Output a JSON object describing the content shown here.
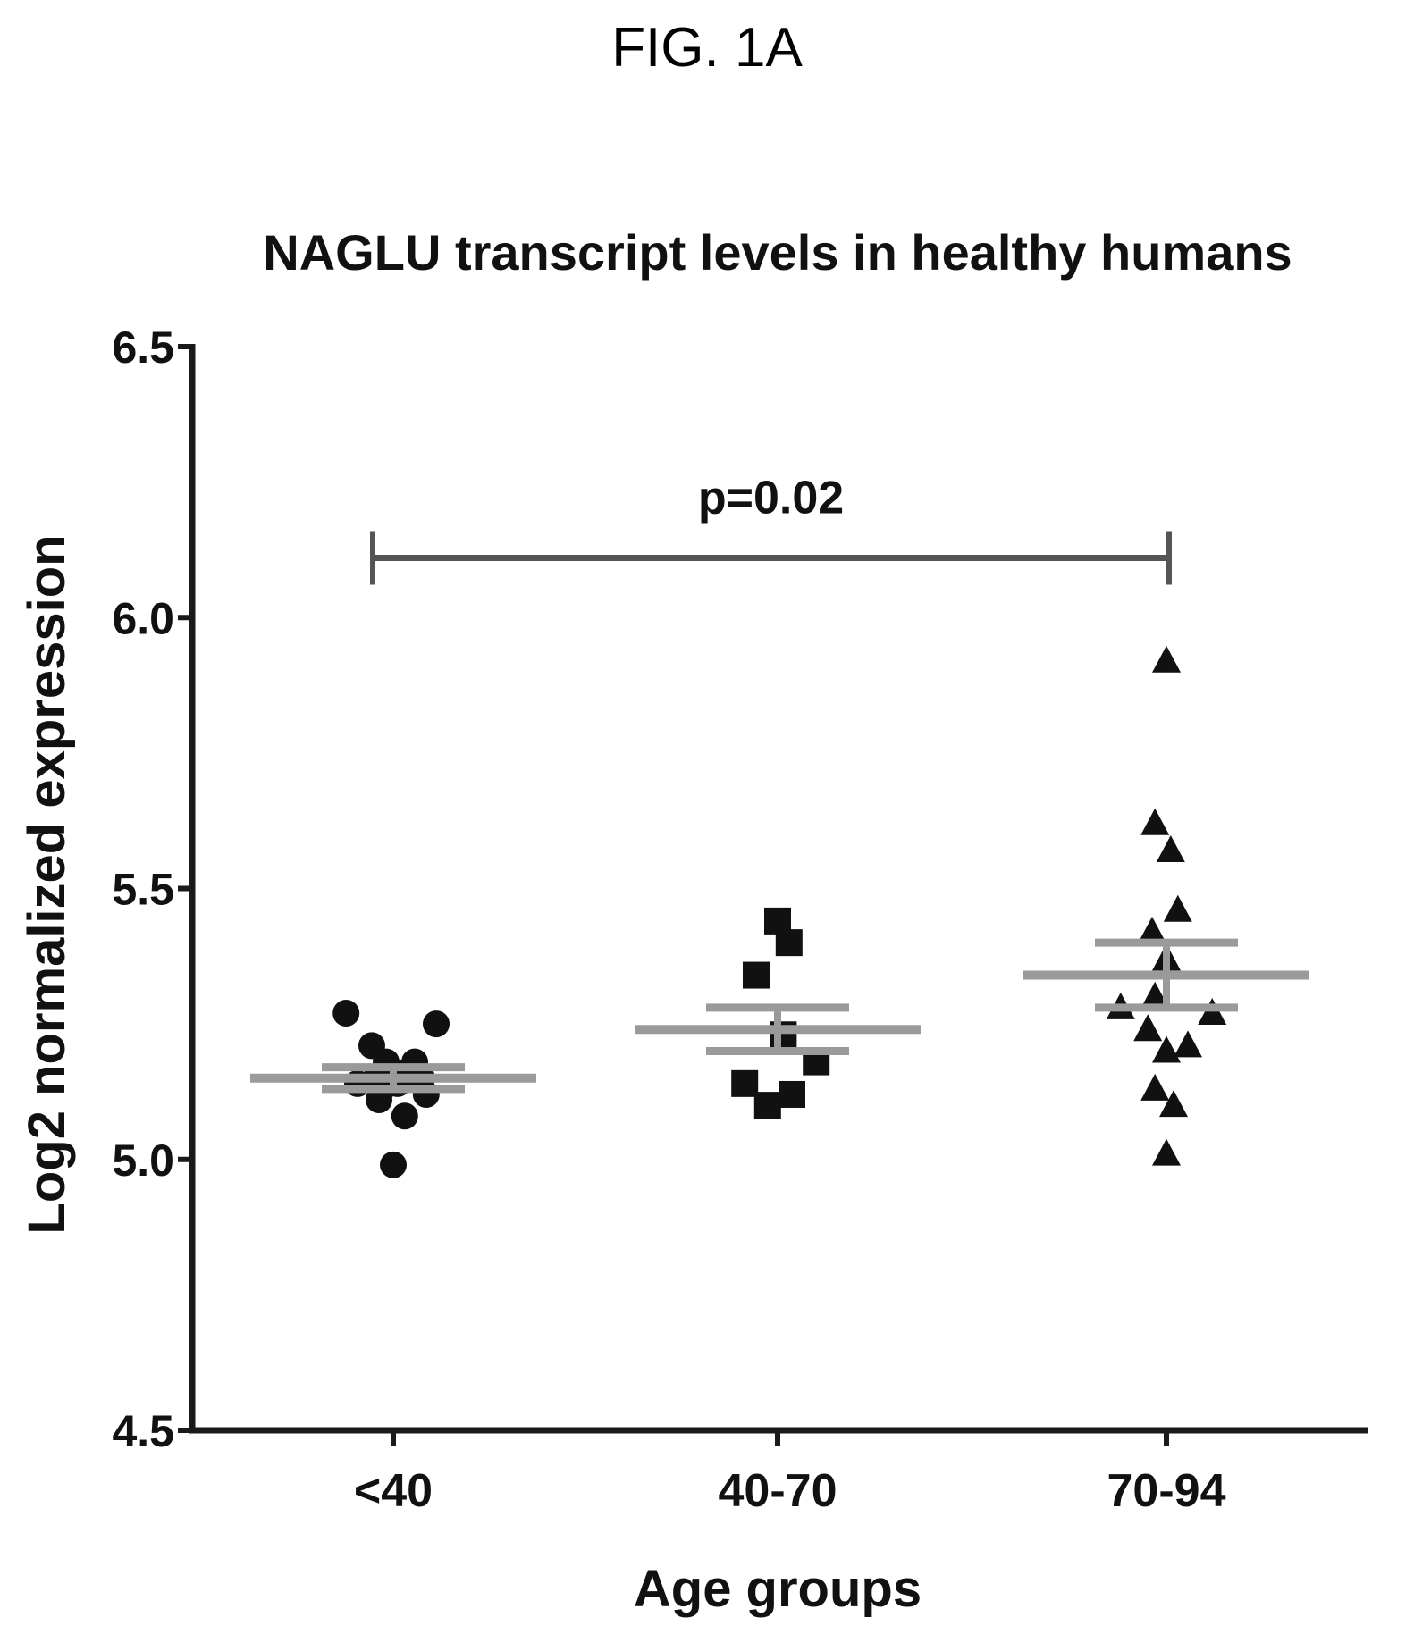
{
  "figure_label": "FIG. 1A",
  "chart_data": {
    "type": "scatter",
    "title": "NAGLU transcript levels in healthy humans",
    "xlabel": "Age groups",
    "ylabel": "Log2 normalized expression",
    "ylim": [
      4.5,
      6.5
    ],
    "yticks": [
      "4.5",
      "5.0",
      "5.5",
      "6.0",
      "6.5"
    ],
    "categories": [
      "<40",
      "40-70",
      "70-94"
    ],
    "grid": false,
    "legend": "none",
    "series": [
      {
        "marker": "circle",
        "category": "<40",
        "mean": 5.15,
        "sem_upper": 5.17,
        "sem_lower": 5.13,
        "points": [
          {
            "dx": -0.33,
            "y": 5.27
          },
          {
            "dx": -0.15,
            "y": 5.21
          },
          {
            "dx": -0.25,
            "y": 5.14
          },
          {
            "dx": -0.12,
            "y": 5.15
          },
          {
            "dx": -0.05,
            "y": 5.18
          },
          {
            "dx": -0.08,
            "y": 5.13
          },
          {
            "dx": -0.1,
            "y": 5.11
          },
          {
            "dx": 0.0,
            "y": 5.16
          },
          {
            "dx": 0.03,
            "y": 5.14
          },
          {
            "dx": 0.08,
            "y": 5.16
          },
          {
            "dx": 0.15,
            "y": 5.18
          },
          {
            "dx": 0.2,
            "y": 5.15
          },
          {
            "dx": 0.23,
            "y": 5.12
          },
          {
            "dx": 0.3,
            "y": 5.25
          },
          {
            "dx": 0.08,
            "y": 5.08
          },
          {
            "dx": 0.0,
            "y": 4.99
          }
        ]
      },
      {
        "marker": "square",
        "category": "40-70",
        "mean": 5.24,
        "sem_upper": 5.28,
        "sem_lower": 5.2,
        "points": [
          {
            "dx": -0.15,
            "y": 5.34
          },
          {
            "dx": 0.0,
            "y": 5.44
          },
          {
            "dx": 0.08,
            "y": 5.4
          },
          {
            "dx": -0.23,
            "y": 5.14
          },
          {
            "dx": -0.07,
            "y": 5.1
          },
          {
            "dx": 0.1,
            "y": 5.12
          },
          {
            "dx": 0.27,
            "y": 5.18
          },
          {
            "dx": 0.04,
            "y": 5.23
          }
        ]
      },
      {
        "marker": "triangle",
        "category": "70-94",
        "mean": 5.34,
        "sem_upper": 5.4,
        "sem_lower": 5.28,
        "points": [
          {
            "dx": 0.0,
            "y": 5.92
          },
          {
            "dx": -0.08,
            "y": 5.62
          },
          {
            "dx": 0.03,
            "y": 5.57
          },
          {
            "dx": 0.08,
            "y": 5.46
          },
          {
            "dx": -0.1,
            "y": 5.42
          },
          {
            "dx": 0.0,
            "y": 5.37
          },
          {
            "dx": -0.08,
            "y": 5.3
          },
          {
            "dx": -0.32,
            "y": 5.28
          },
          {
            "dx": 0.32,
            "y": 5.27
          },
          {
            "dx": -0.13,
            "y": 5.24
          },
          {
            "dx": 0.0,
            "y": 5.2
          },
          {
            "dx": 0.15,
            "y": 5.21
          },
          {
            "dx": -0.08,
            "y": 5.13
          },
          {
            "dx": 0.05,
            "y": 5.1
          },
          {
            "dx": 0.0,
            "y": 5.01
          }
        ]
      }
    ],
    "annotations": [
      {
        "text": "p=0.02",
        "from": "<40",
        "to": "70-94",
        "y": 6.11
      }
    ]
  }
}
